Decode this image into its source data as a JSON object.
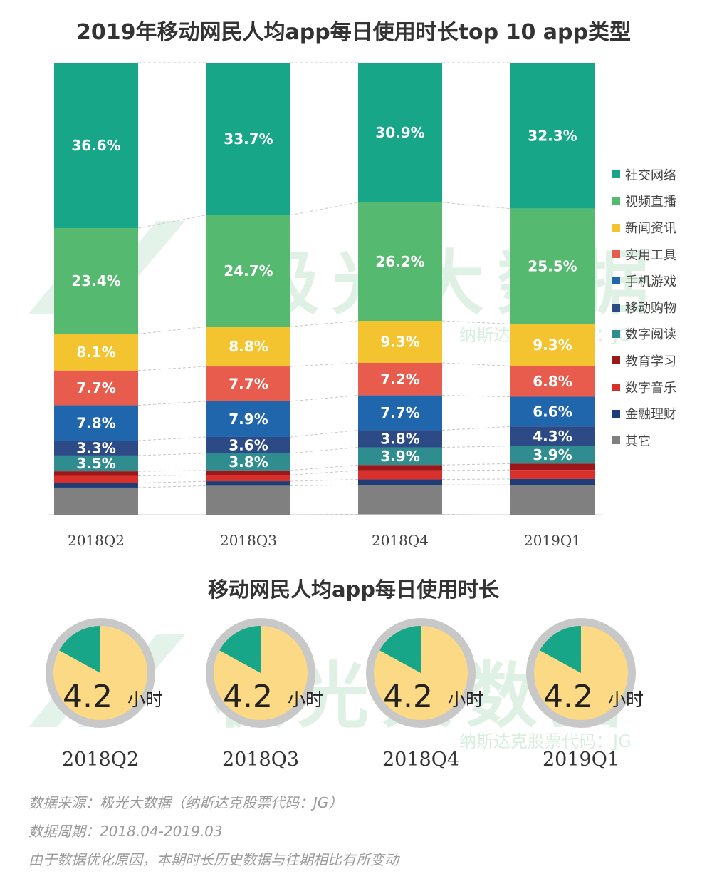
{
  "title": "2019年移动网民人均app每日使用时长top 10 app类型",
  "subtitle": "移动网民人均app每日使用时长",
  "watermark": {
    "text": "极光大数据",
    "sub": "纳斯达克股票代码：JG"
  },
  "chart_data": [
    {
      "type": "bar",
      "stacked": true,
      "title": "2019年移动网民人均app每日使用时长top 10 app类型",
      "categories": [
        "2018Q2",
        "2018Q3",
        "2018Q4",
        "2019Q1"
      ],
      "ylim": [
        0,
        100
      ],
      "legend_position": "right",
      "series": [
        {
          "name": "社交网络",
          "color": "#17a688",
          "values": [
            36.6,
            33.7,
            30.9,
            32.3
          ],
          "labels": [
            "36.6%",
            "33.7%",
            "30.9%",
            "32.3%"
          ]
        },
        {
          "name": "视频直播",
          "color": "#56b970",
          "values": [
            23.4,
            24.7,
            26.2,
            25.5
          ],
          "labels": [
            "23.4%",
            "24.7%",
            "26.2%",
            "25.5%"
          ]
        },
        {
          "name": "新闻资讯",
          "color": "#f4c430",
          "values": [
            8.1,
            8.8,
            9.3,
            9.3
          ],
          "labels": [
            "8.1%",
            "8.8%",
            "9.3%",
            "9.3%"
          ]
        },
        {
          "name": "实用工具",
          "color": "#e85c4d",
          "values": [
            7.7,
            7.7,
            7.2,
            6.8
          ],
          "labels": [
            "7.7%",
            "7.7%",
            "7.2%",
            "6.8%"
          ]
        },
        {
          "name": "手机游戏",
          "color": "#1f66ac",
          "values": [
            7.8,
            7.9,
            7.7,
            6.6
          ],
          "labels": [
            "7.8%",
            "7.9%",
            "7.7%",
            "6.6%"
          ]
        },
        {
          "name": "移动购物",
          "color": "#2c4a86",
          "values": [
            3.3,
            3.6,
            3.8,
            4.3
          ],
          "labels": [
            "3.3%",
            "3.6%",
            "3.8%",
            "4.3%"
          ]
        },
        {
          "name": "数字阅读",
          "color": "#2f8c8f",
          "values": [
            3.5,
            3.8,
            3.9,
            3.9
          ],
          "labels": [
            "3.5%",
            "3.8%",
            "3.9%",
            "3.9%"
          ]
        },
        {
          "name": "教育学习",
          "color": "#9c1818",
          "values": [
            1.0,
            1.0,
            1.2,
            1.4
          ],
          "labels": [
            "",
            "",
            "",
            ""
          ]
        },
        {
          "name": "数字音乐",
          "color": "#d8302a",
          "values": [
            1.6,
            1.4,
            2.0,
            2.0
          ],
          "labels": [
            "",
            "",
            "",
            ""
          ]
        },
        {
          "name": "金融理财",
          "color": "#1e3c78",
          "values": [
            1.0,
            1.0,
            1.2,
            1.3
          ],
          "labels": [
            "",
            "",
            "",
            ""
          ]
        },
        {
          "name": "其它",
          "color": "#808080",
          "values": [
            6.0,
            6.4,
            6.5,
            6.7
          ],
          "labels": [
            "",
            "",
            "",
            ""
          ]
        }
      ]
    },
    {
      "type": "pie",
      "title": "移动网民人均app每日使用时长",
      "categories": [
        "2018Q2",
        "2018Q3",
        "2018Q4",
        "2019Q1"
      ],
      "values": [
        4.2,
        4.2,
        4.2,
        4.2
      ],
      "value_labels": [
        "4.2",
        "4.2",
        "4.2",
        "4.2"
      ],
      "unit": "小时",
      "slice_fraction": 0.17,
      "colors": {
        "slice": "#17a688",
        "rest": "#fbd985",
        "ring": "#c8c8c8"
      }
    }
  ],
  "footer": {
    "source": "数据来源：极光大数据（纳斯达克股票代码：JG）",
    "period": "数据周期：2018.04-2019.03",
    "note": "由于数据优化原因，本期时长历史数据与往期相比有所变动"
  }
}
